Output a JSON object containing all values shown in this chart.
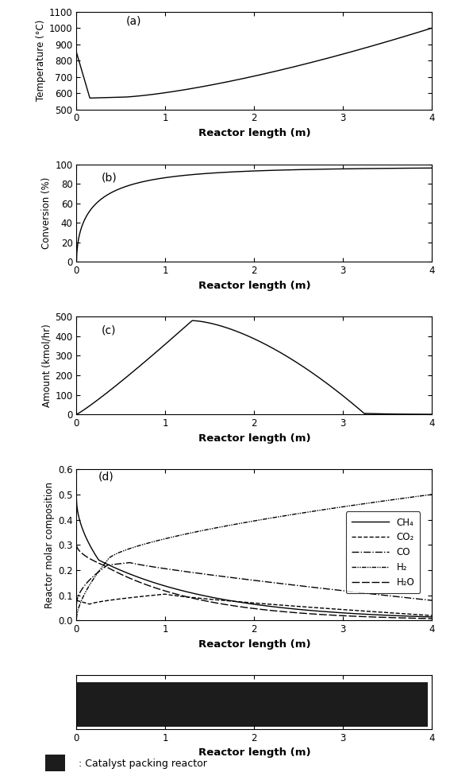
{
  "title_a": "(a)",
  "title_b": "(b)",
  "title_c": "(c)",
  "title_d": "(d)",
  "xlabel": "Reactor length (m)",
  "ylabel_a": "Temperature (°C)",
  "ylabel_b": "Conversion (%)",
  "ylabel_c": "Amount (kmol/hr)",
  "ylabel_d": "Reactor molar composition",
  "xlim": [
    0,
    4
  ],
  "ylim_a": [
    500,
    1100
  ],
  "ylim_b": [
    0,
    100
  ],
  "ylim_c": [
    0,
    500
  ],
  "ylim_d": [
    0,
    0.6
  ],
  "yticks_a": [
    500,
    600,
    700,
    800,
    900,
    1000,
    1100
  ],
  "yticks_b": [
    0,
    20,
    40,
    60,
    80,
    100
  ],
  "yticks_c": [
    0,
    100,
    200,
    300,
    400,
    500
  ],
  "yticks_d": [
    0.0,
    0.1,
    0.2,
    0.3,
    0.4,
    0.5,
    0.6
  ],
  "xticks": [
    0,
    1,
    2,
    3,
    4
  ],
  "legend_labels": [
    "CH₄",
    "CO₂",
    "CO",
    "H₂",
    "H₂O"
  ],
  "catalyst_label": ": Catalyst packing reactor",
  "background_color": "#ffffff",
  "line_color": "#000000"
}
